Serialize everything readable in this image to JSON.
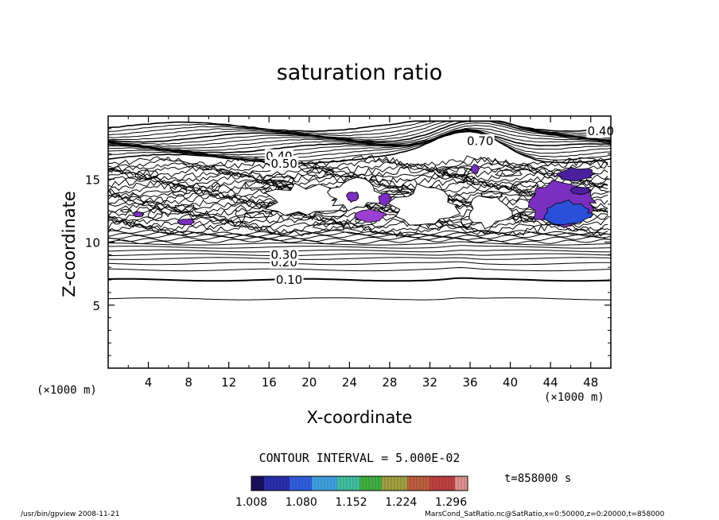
{
  "title": "saturation ratio",
  "xlabel": "X-coordinate",
  "ylabel": "Z-coordinate",
  "x_unit_left": "(×1000 m)",
  "x_unit_right": "(×1000 m)",
  "contour_interval": "CONTOUR INTERVAL = 5.000E-02",
  "time": "t=858000 s",
  "footer_left": "/usr/bin/gpview   2008-11-21",
  "footer_right": "MarsCond_SatRatio.nc@SatRatio,x=0:50000,z=0:20000,t=858000",
  "colors": {
    "contour": "#000000",
    "shade_dark": "#4b1f9e",
    "shade_mid": "#7a2fc0",
    "shade_light": "#9a3fd0",
    "shade_blue": "#2a4fd8"
  },
  "chart_data": {
    "type": "contour",
    "variable": "saturation ratio",
    "xlim": [
      0,
      50
    ],
    "ylim": [
      0,
      20
    ],
    "x_ticks": [
      "4",
      "8",
      "12",
      "16",
      "20",
      "24",
      "28",
      "32",
      "36",
      "40",
      "44",
      "48"
    ],
    "x_tick_values": [
      4,
      8,
      12,
      16,
      20,
      24,
      28,
      32,
      36,
      40,
      44,
      48
    ],
    "y_ticks": [
      "5",
      "10",
      "15"
    ],
    "y_tick_values": [
      5,
      10,
      15
    ],
    "contour_labels": [
      {
        "text": "0.10",
        "x": 18.0,
        "z": 7.0
      },
      {
        "text": "0.20",
        "x": 17.5,
        "z": 8.4
      },
      {
        "text": "0.30",
        "x": 17.5,
        "z": 9.0
      },
      {
        "text": "0.40",
        "x": 17.0,
        "z": 16.8
      },
      {
        "text": "0.50",
        "x": 17.5,
        "z": 16.2
      },
      {
        "text": "0.70",
        "x": 37.0,
        "z": 18.0
      },
      {
        "text": "0.40",
        "x": 49.0,
        "z": 18.8
      }
    ],
    "colorbar": {
      "ticks": [
        "1.008",
        "1.080",
        "1.152",
        "1.224",
        "1.296"
      ],
      "min": 1.008,
      "max": 1.32,
      "colors": [
        "#1a1060",
        "#2a2fb0",
        "#3060e0",
        "#40a0e0",
        "#40c0a0",
        "#40b040",
        "#a0a040",
        "#c06040",
        "#c04040",
        "#e09090"
      ]
    }
  }
}
